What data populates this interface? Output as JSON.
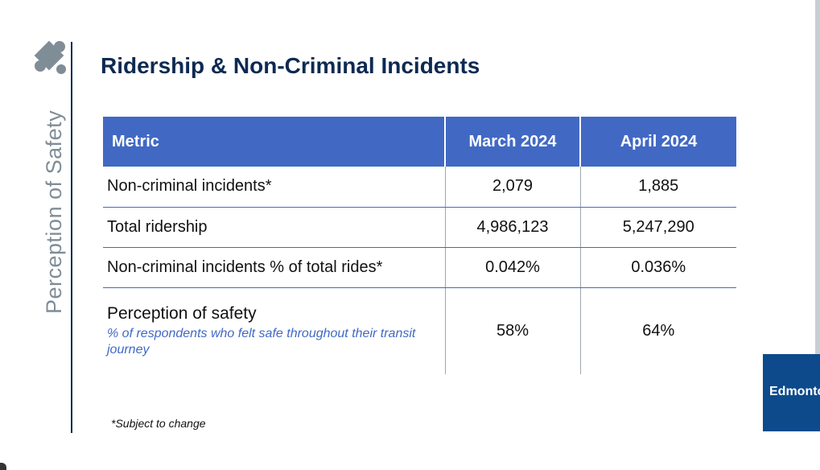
{
  "sidebar": {
    "label": "Perception of Safety"
  },
  "title": "Ridership & Non-Criminal Incidents",
  "table": {
    "headers": [
      "Metric",
      "March 2024",
      "April 2024"
    ],
    "rows": [
      {
        "metric": "Non-criminal incidents*",
        "march": "2,079",
        "april": "1,885"
      },
      {
        "metric": "Total ridership",
        "march": "4,986,123",
        "april": "5,247,290"
      },
      {
        "metric": "Non-criminal incidents % of total rides*",
        "march": "0.042%",
        "april": "0.036%"
      },
      {
        "metric": "Perception of safety",
        "note": "% of respondents who felt safe throughout their transit journey",
        "march": "58%",
        "april": "64%"
      }
    ]
  },
  "footnote": "*Subject to change",
  "logo": {
    "text": "Edmonton"
  },
  "colors": {
    "header_bg": "#4169c4",
    "title": "#0d2a52",
    "accent": "#4169c4",
    "sidebar_text": "#7f8d97",
    "logo_bg": "#0c4a8c"
  },
  "icons": {
    "section_icon": "puzzle-piece-icon"
  }
}
